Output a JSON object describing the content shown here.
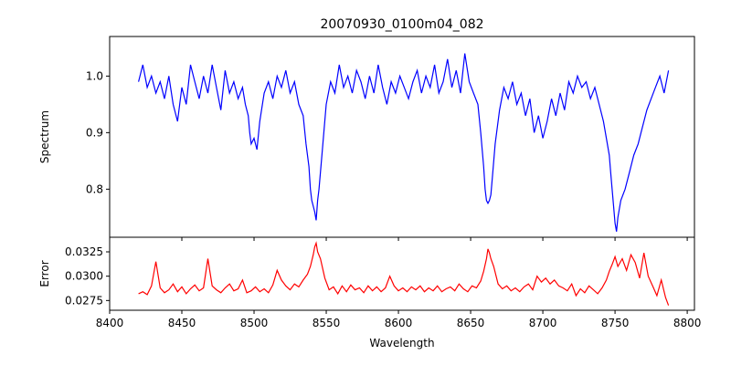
{
  "chart_data": {
    "type": "line",
    "title": "20070930_0100m04_082",
    "xlabel": "Wavelength",
    "xlim": [
      8400,
      8805
    ],
    "xticks": [
      8400,
      8450,
      8500,
      8550,
      8600,
      8650,
      8700,
      8750,
      8800
    ],
    "grid": false,
    "panels": [
      {
        "ylabel": "Spectrum",
        "ylim": [
          0.715,
          1.07
        ],
        "yticks": [
          0.8,
          0.9,
          1.0
        ],
        "ytick_labels": [
          "0.8",
          "0.9",
          "1.0"
        ],
        "color": "#0000ff",
        "x": [
          8420,
          8423,
          8426,
          8429,
          8432,
          8435,
          8438,
          8441,
          8444,
          8447,
          8450,
          8453,
          8456,
          8459,
          8462,
          8465,
          8468,
          8471,
          8474,
          8477,
          8480,
          8483,
          8486,
          8489,
          8492,
          8494,
          8496,
          8497,
          8498,
          8500,
          8502,
          8504,
          8507,
          8510,
          8513,
          8516,
          8519,
          8522,
          8525,
          8528,
          8531,
          8534,
          8536,
          8538,
          8539,
          8540,
          8541,
          8542,
          8543,
          8544,
          8545,
          8547,
          8550,
          8553,
          8556,
          8559,
          8562,
          8565,
          8568,
          8571,
          8574,
          8577,
          8580,
          8583,
          8586,
          8589,
          8592,
          8595,
          8598,
          8601,
          8604,
          8607,
          8610,
          8613,
          8616,
          8619,
          8622,
          8625,
          8628,
          8631,
          8634,
          8637,
          8640,
          8643,
          8646,
          8649,
          8652,
          8655,
          8657,
          8659,
          8660,
          8661,
          8662,
          8663,
          8664,
          8665,
          8667,
          8670,
          8673,
          8676,
          8679,
          8682,
          8685,
          8688,
          8691,
          8694,
          8697,
          8700,
          8703,
          8706,
          8709,
          8712,
          8715,
          8718,
          8721,
          8724,
          8727,
          8730,
          8733,
          8736,
          8739,
          8742,
          8744,
          8746,
          8747,
          8748,
          8749,
          8750,
          8751,
          8752,
          8754,
          8757,
          8760,
          8763,
          8766,
          8769,
          8772,
          8775,
          8778,
          8781,
          8784,
          8787
        ],
        "y": [
          0.99,
          1.02,
          0.98,
          1.0,
          0.97,
          0.99,
          0.96,
          1.0,
          0.95,
          0.92,
          0.98,
          0.95,
          1.02,
          0.99,
          0.96,
          1.0,
          0.97,
          1.02,
          0.98,
          0.94,
          1.01,
          0.97,
          0.99,
          0.96,
          0.98,
          0.95,
          0.93,
          0.9,
          0.88,
          0.89,
          0.87,
          0.92,
          0.97,
          0.99,
          0.96,
          1.0,
          0.98,
          1.01,
          0.97,
          0.99,
          0.95,
          0.93,
          0.88,
          0.84,
          0.8,
          0.78,
          0.77,
          0.76,
          0.745,
          0.78,
          0.8,
          0.86,
          0.95,
          0.99,
          0.97,
          1.02,
          0.98,
          1.0,
          0.97,
          1.01,
          0.99,
          0.96,
          1.0,
          0.97,
          1.02,
          0.98,
          0.95,
          0.99,
          0.97,
          1.0,
          0.98,
          0.96,
          0.99,
          1.01,
          0.97,
          1.0,
          0.98,
          1.02,
          0.97,
          0.99,
          1.03,
          0.98,
          1.01,
          0.97,
          1.04,
          0.99,
          0.97,
          0.95,
          0.9,
          0.84,
          0.8,
          0.78,
          0.775,
          0.78,
          0.79,
          0.82,
          0.88,
          0.94,
          0.98,
          0.96,
          0.99,
          0.95,
          0.97,
          0.93,
          0.96,
          0.9,
          0.93,
          0.89,
          0.92,
          0.96,
          0.93,
          0.97,
          0.94,
          0.99,
          0.97,
          1.0,
          0.98,
          0.99,
          0.96,
          0.98,
          0.95,
          0.92,
          0.89,
          0.86,
          0.83,
          0.8,
          0.77,
          0.74,
          0.725,
          0.75,
          0.78,
          0.8,
          0.83,
          0.86,
          0.88,
          0.91,
          0.94,
          0.96,
          0.98,
          1.0,
          0.97,
          1.01
        ]
      },
      {
        "ylabel": "Error",
        "ylim": [
          0.0265,
          0.034
        ],
        "yticks": [
          0.0275,
          0.03,
          0.0325
        ],
        "ytick_labels": [
          "0.0275",
          "0.0300",
          "0.0325"
        ],
        "color": "#ff0000",
        "x": [
          8420,
          8423,
          8426,
          8429,
          8432,
          8435,
          8438,
          8441,
          8444,
          8447,
          8450,
          8453,
          8456,
          8459,
          8462,
          8465,
          8468,
          8471,
          8474,
          8477,
          8480,
          8483,
          8486,
          8489,
          8492,
          8495,
          8498,
          8501,
          8504,
          8507,
          8510,
          8513,
          8516,
          8519,
          8522,
          8525,
          8528,
          8531,
          8534,
          8537,
          8539,
          8541,
          8542,
          8543,
          8544,
          8546,
          8549,
          8552,
          8555,
          8558,
          8561,
          8564,
          8567,
          8570,
          8573,
          8576,
          8579,
          8582,
          8585,
          8588,
          8591,
          8594,
          8597,
          8600,
          8603,
          8606,
          8609,
          8612,
          8615,
          8618,
          8621,
          8624,
          8627,
          8630,
          8633,
          8636,
          8639,
          8642,
          8645,
          8648,
          8651,
          8654,
          8657,
          8659,
          8661,
          8662,
          8663,
          8664,
          8666,
          8669,
          8672,
          8675,
          8678,
          8681,
          8684,
          8687,
          8690,
          8693,
          8696,
          8699,
          8702,
          8705,
          8708,
          8711,
          8714,
          8717,
          8720,
          8723,
          8726,
          8729,
          8732,
          8735,
          8738,
          8741,
          8744,
          8746,
          8748,
          8750,
          8752,
          8755,
          8758,
          8761,
          8764,
          8767,
          8770,
          8773,
          8776,
          8779,
          8782,
          8785,
          8787
        ],
        "y": [
          0.0282,
          0.0284,
          0.0281,
          0.029,
          0.0315,
          0.0288,
          0.0283,
          0.0286,
          0.0292,
          0.0284,
          0.0289,
          0.0282,
          0.0287,
          0.0291,
          0.0285,
          0.0288,
          0.0318,
          0.029,
          0.0286,
          0.0283,
          0.0288,
          0.0292,
          0.0285,
          0.0287,
          0.0296,
          0.0283,
          0.0285,
          0.0289,
          0.0284,
          0.0287,
          0.0283,
          0.0291,
          0.0306,
          0.0296,
          0.029,
          0.0286,
          0.0292,
          0.0289,
          0.0296,
          0.0302,
          0.031,
          0.0322,
          0.033,
          0.0334,
          0.0325,
          0.0318,
          0.0298,
          0.0286,
          0.0289,
          0.0282,
          0.029,
          0.0284,
          0.0291,
          0.0286,
          0.0288,
          0.0283,
          0.029,
          0.0285,
          0.0289,
          0.0284,
          0.0288,
          0.03,
          0.029,
          0.0285,
          0.0288,
          0.0284,
          0.0289,
          0.0286,
          0.029,
          0.0284,
          0.0288,
          0.0285,
          0.029,
          0.0284,
          0.0287,
          0.0289,
          0.0285,
          0.0292,
          0.0287,
          0.0284,
          0.029,
          0.0288,
          0.0295,
          0.0305,
          0.0318,
          0.0328,
          0.0324,
          0.0318,
          0.031,
          0.0292,
          0.0287,
          0.029,
          0.0285,
          0.0288,
          0.0284,
          0.0289,
          0.0292,
          0.0286,
          0.03,
          0.0294,
          0.0298,
          0.0292,
          0.0296,
          0.029,
          0.0288,
          0.0285,
          0.0292,
          0.028,
          0.0287,
          0.0283,
          0.029,
          0.0286,
          0.0282,
          0.0288,
          0.0296,
          0.0305,
          0.0312,
          0.032,
          0.031,
          0.0318,
          0.0306,
          0.0322,
          0.0314,
          0.0298,
          0.0324,
          0.03,
          0.029,
          0.028,
          0.0296,
          0.0278,
          0.027
        ]
      }
    ]
  }
}
